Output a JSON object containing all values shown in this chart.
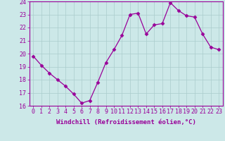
{
  "x": [
    0,
    1,
    2,
    3,
    4,
    5,
    6,
    7,
    8,
    9,
    10,
    11,
    12,
    13,
    14,
    15,
    16,
    17,
    18,
    19,
    20,
    21,
    22,
    23
  ],
  "y": [
    19.8,
    19.1,
    18.5,
    18.0,
    17.5,
    16.9,
    16.2,
    16.4,
    17.8,
    19.3,
    20.3,
    21.4,
    23.0,
    23.1,
    21.5,
    22.2,
    22.3,
    23.9,
    23.3,
    22.9,
    22.8,
    21.5,
    20.5,
    20.3
  ],
  "line_color": "#990099",
  "marker": "D",
  "marker_size": 2.5,
  "bg_color": "#cce8e8",
  "grid_color": "#aacccc",
  "xlabel": "Windchill (Refroidissement éolien,°C)",
  "ylim": [
    16,
    24
  ],
  "xlim": [
    -0.5,
    23.5
  ],
  "yticks": [
    16,
    17,
    18,
    19,
    20,
    21,
    22,
    23,
    24
  ],
  "xticks": [
    0,
    1,
    2,
    3,
    4,
    5,
    6,
    7,
    8,
    9,
    10,
    11,
    12,
    13,
    14,
    15,
    16,
    17,
    18,
    19,
    20,
    21,
    22,
    23
  ],
  "xtick_labels": [
    "0",
    "1",
    "2",
    "3",
    "4",
    "5",
    "6",
    "7",
    "8",
    "9",
    "10",
    "11",
    "12",
    "13",
    "14",
    "15",
    "16",
    "17",
    "18",
    "19",
    "20",
    "21",
    "22",
    "23"
  ],
  "tick_color": "#990099",
  "label_color": "#990099",
  "label_fontsize": 6.5,
  "tick_fontsize": 6.0
}
